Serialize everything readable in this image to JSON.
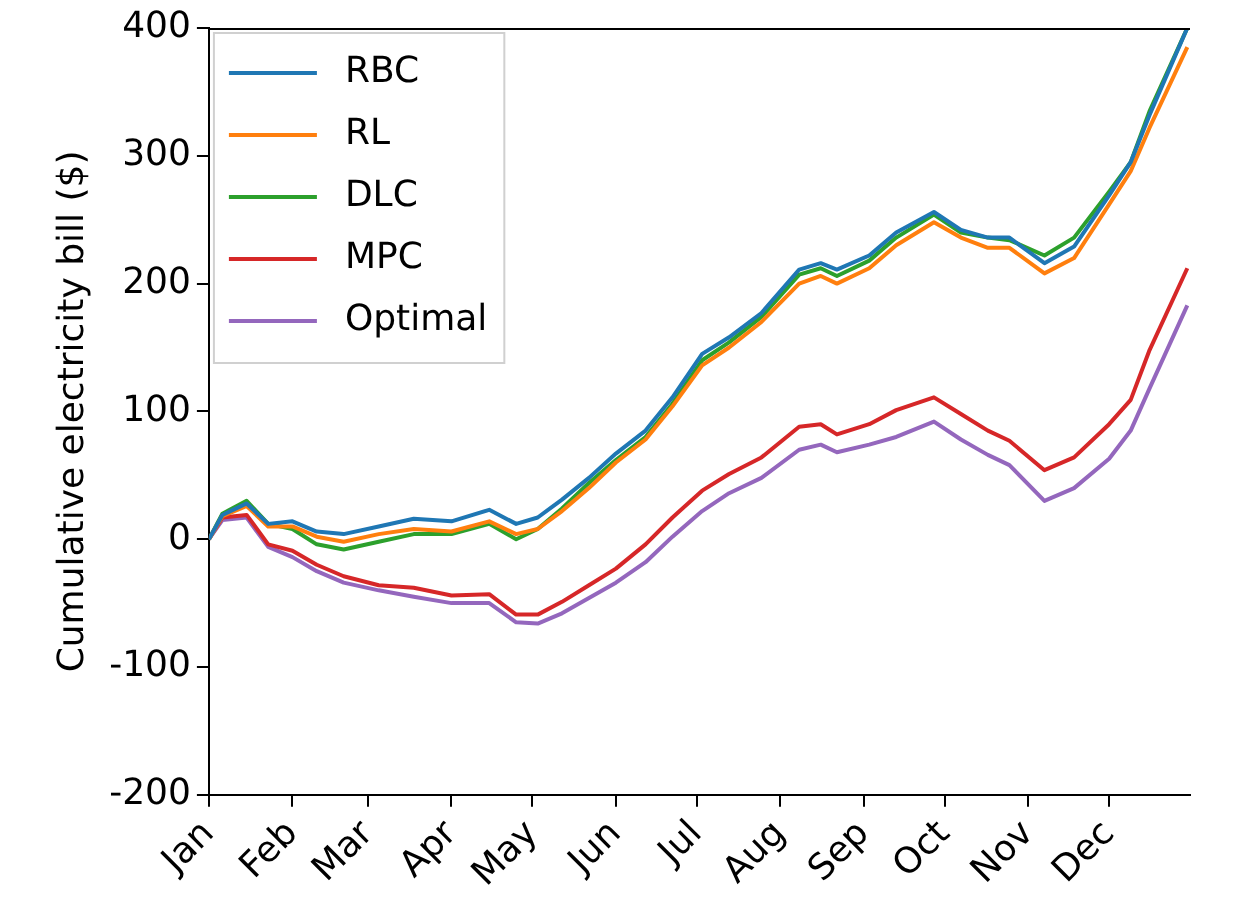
{
  "chart_data": {
    "type": "line",
    "ylabel": "Cumulative electricity bill ($)",
    "x": [
      "--01-01",
      "--01-06",
      "--01-15",
      "--01-23",
      "--02-01",
      "--02-10",
      "--02-20",
      "--03-05",
      "--03-18",
      "--04-01",
      "--04-15",
      "--04-25",
      "--05-03",
      "--05-12",
      "--05-22",
      "--06-01",
      "--06-12",
      "--06-22",
      "--07-03",
      "--07-13",
      "--07-25",
      "--08-08",
      "--08-16",
      "--08-22",
      "--09-03",
      "--09-13",
      "--09-27",
      "--10-07",
      "--10-17",
      "--10-25",
      "--11-07",
      "--11-18",
      "--12-01",
      "--12-09",
      "--12-16",
      "--12-30"
    ],
    "series": [
      {
        "name": "RBC",
        "color": "#1f77b4",
        "values": [
          0,
          19,
          28,
          12,
          14,
          6,
          4,
          10,
          16,
          14,
          23,
          12,
          17,
          31,
          48,
          67,
          85,
          111,
          145,
          158,
          177,
          211,
          216,
          211,
          222,
          240,
          256,
          242,
          236,
          236,
          216,
          229,
          269,
          295,
          332,
          400
        ]
      },
      {
        "name": "RL",
        "color": "#ff7f0e",
        "values": [
          0,
          18,
          26,
          10,
          10,
          2,
          -2,
          4,
          8,
          6,
          14,
          4,
          8,
          22,
          40,
          60,
          78,
          104,
          136,
          150,
          170,
          200,
          206,
          200,
          212,
          230,
          248,
          236,
          228,
          228,
          208,
          220,
          262,
          288,
          322,
          385
        ]
      },
      {
        "name": "DLC",
        "color": "#2ca02c",
        "values": [
          0,
          20,
          30,
          12,
          8,
          -4,
          -8,
          -2,
          4,
          4,
          12,
          0,
          8,
          24,
          44,
          62,
          80,
          106,
          140,
          154,
          174,
          207,
          212,
          206,
          218,
          236,
          254,
          240,
          236,
          234,
          222,
          236,
          272,
          295,
          335,
          400
        ]
      },
      {
        "name": "MPC",
        "color": "#d62728",
        "values": [
          0,
          17,
          19,
          -4,
          -9,
          -20,
          -29,
          -36,
          -38,
          -44,
          -43,
          -59,
          -59,
          -49,
          -36,
          -23,
          -4,
          17,
          38,
          51,
          64,
          88,
          90,
          82,
          90,
          101,
          111,
          98,
          85,
          77,
          54,
          64,
          90,
          109,
          148,
          212
        ]
      },
      {
        "name": "Optimal",
        "color": "#9467bd",
        "values": [
          0,
          15,
          17,
          -6,
          -14,
          -25,
          -34,
          -40,
          -45,
          -50,
          -50,
          -65,
          -66,
          -58,
          -46,
          -34,
          -18,
          2,
          22,
          36,
          48,
          70,
          74,
          68,
          74,
          80,
          92,
          78,
          66,
          58,
          30,
          40,
          63,
          85,
          118,
          183
        ]
      }
    ],
    "xlim": [
      "--01-01",
      "--12-31"
    ],
    "xticks": [
      {
        "value": "--01-01",
        "label": "Jan"
      },
      {
        "value": "--02-01",
        "label": "Feb"
      },
      {
        "value": "--03-01",
        "label": "Mar"
      },
      {
        "value": "--04-01",
        "label": "Apr"
      },
      {
        "value": "--05-01",
        "label": "May"
      },
      {
        "value": "--06-01",
        "label": "Jun"
      },
      {
        "value": "--07-01",
        "label": "Jul"
      },
      {
        "value": "--08-01",
        "label": "Aug"
      },
      {
        "value": "--09-01",
        "label": "Sep"
      },
      {
        "value": "--10-01",
        "label": "Oct"
      },
      {
        "value": "--11-01",
        "label": "Nov"
      },
      {
        "value": "--12-01",
        "label": "Dec"
      }
    ],
    "ylim": [
      -200,
      400
    ],
    "yticks": [
      -200,
      -100,
      0,
      100,
      200,
      300,
      400
    ],
    "grid": false,
    "legend": "top left",
    "marker": "none",
    "line_style": "solid"
  }
}
